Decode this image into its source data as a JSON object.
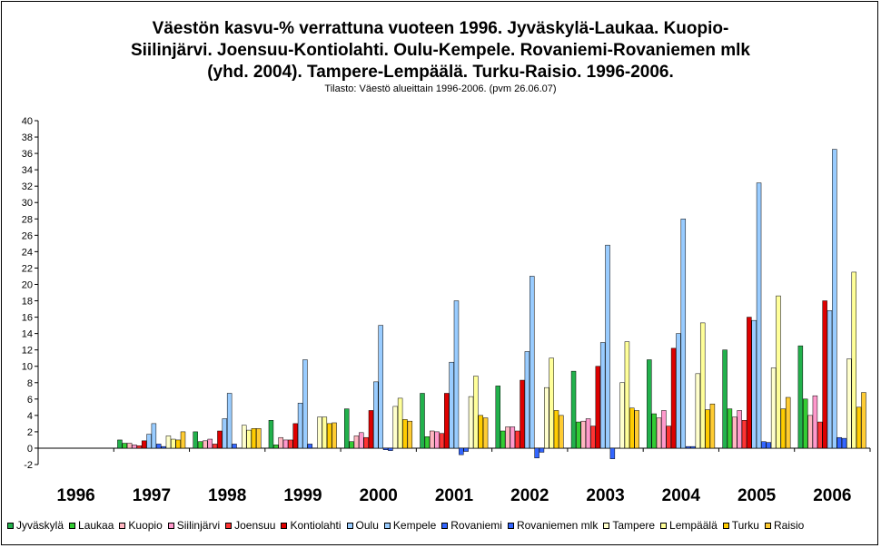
{
  "chart_data": {
    "type": "bar",
    "title_lines": [
      "Väestön kasvu-% verrattuna vuoteen 1996. Jyväskylä-Laukaa. Kuopio-",
      "Siilinjärvi. Joensuu-Kontiolahti. Oulu-Kempele. Rovaniemi-Rovaniemen mlk",
      "(yhd. 2004). Tampere-Lempäälä. Turku-Raisio.  1996-2006."
    ],
    "subtitle": "Tilasto: Väestö alueittain 1996-2006. (pvm 26.06.07)",
    "categories": [
      "1996",
      "1997",
      "1998",
      "1999",
      "2000",
      "2001",
      "2002",
      "2003",
      "2004",
      "2005",
      "2006"
    ],
    "ylim": [
      -2,
      40
    ],
    "ytick_step": 2,
    "grid": false,
    "legend_position": "bottom",
    "series": [
      {
        "name": "Jyväskylä",
        "color": "#22B14C",
        "values": [
          0,
          1.0,
          2.0,
          3.4,
          4.8,
          6.7,
          7.6,
          9.4,
          10.8,
          12.0,
          12.5
        ]
      },
      {
        "name": "Laukaa",
        "color": "#33CC33",
        "values": [
          0,
          0.6,
          0.8,
          0.4,
          0.8,
          1.4,
          2.1,
          3.2,
          4.2,
          4.8,
          6.0
        ]
      },
      {
        "name": "Kuopio",
        "color": "#FFB6C1",
        "values": [
          0,
          0.6,
          0.9,
          1.3,
          1.5,
          2.1,
          2.6,
          3.3,
          3.7,
          3.8,
          4.0
        ]
      },
      {
        "name": "Siilinjärvi",
        "color": "#FF99CC",
        "values": [
          0,
          0.4,
          1.1,
          1.0,
          1.9,
          2.0,
          2.6,
          3.6,
          4.6,
          4.6,
          6.4
        ]
      },
      {
        "name": "Joensuu",
        "color": "#FF3333",
        "values": [
          0,
          0.3,
          0.5,
          1.0,
          1.3,
          1.8,
          2.1,
          2.7,
          2.7,
          3.4,
          3.2
        ]
      },
      {
        "name": "Kontiolahti",
        "color": "#DD0000",
        "values": [
          0,
          0.9,
          2.1,
          3.0,
          4.6,
          6.7,
          8.3,
          10.0,
          12.2,
          16.0,
          18.0
        ]
      },
      {
        "name": "Oulu",
        "color": "#99CCFF",
        "values": [
          0,
          1.7,
          3.6,
          5.5,
          8.1,
          10.5,
          11.8,
          12.9,
          14.0,
          15.6,
          16.8
        ]
      },
      {
        "name": "Kempele",
        "color": "#99CCFF",
        "values": [
          0,
          3.0,
          6.7,
          10.8,
          15.0,
          18.0,
          21.0,
          24.8,
          28.0,
          32.4,
          36.5
        ]
      },
      {
        "name": "Rovaniemi",
        "color": "#3366FF",
        "values": [
          0,
          0.5,
          0.5,
          0.5,
          -0.2,
          -0.8,
          -1.2,
          -1.3,
          0.2,
          0.8,
          1.3
        ]
      },
      {
        "name": "Rovaniemen mlk",
        "color": "#3366FF",
        "values": [
          0,
          0.2,
          0,
          0,
          -0.3,
          -0.4,
          -0.5,
          0,
          0.2,
          0.7,
          1.2
        ]
      },
      {
        "name": "Tampere",
        "color": "#FFFFCC",
        "values": [
          0,
          1.5,
          2.8,
          3.8,
          5.1,
          6.3,
          7.4,
          8.0,
          9.1,
          9.8,
          10.9
        ]
      },
      {
        "name": "Lempäälä",
        "color": "#FFFF99",
        "values": [
          0,
          1.1,
          2.2,
          3.8,
          6.1,
          8.8,
          11.0,
          13.0,
          15.3,
          18.6,
          21.5
        ]
      },
      {
        "name": "Turku",
        "color": "#FFCC00",
        "values": [
          0,
          1.0,
          2.4,
          3.0,
          3.5,
          4.0,
          4.6,
          4.9,
          4.7,
          4.8,
          5.0
        ]
      },
      {
        "name": "Raisio",
        "color": "#FFCC33",
        "values": [
          0,
          2.0,
          2.4,
          3.1,
          3.3,
          3.7,
          4.0,
          4.6,
          5.4,
          6.2,
          6.8
        ]
      }
    ]
  }
}
